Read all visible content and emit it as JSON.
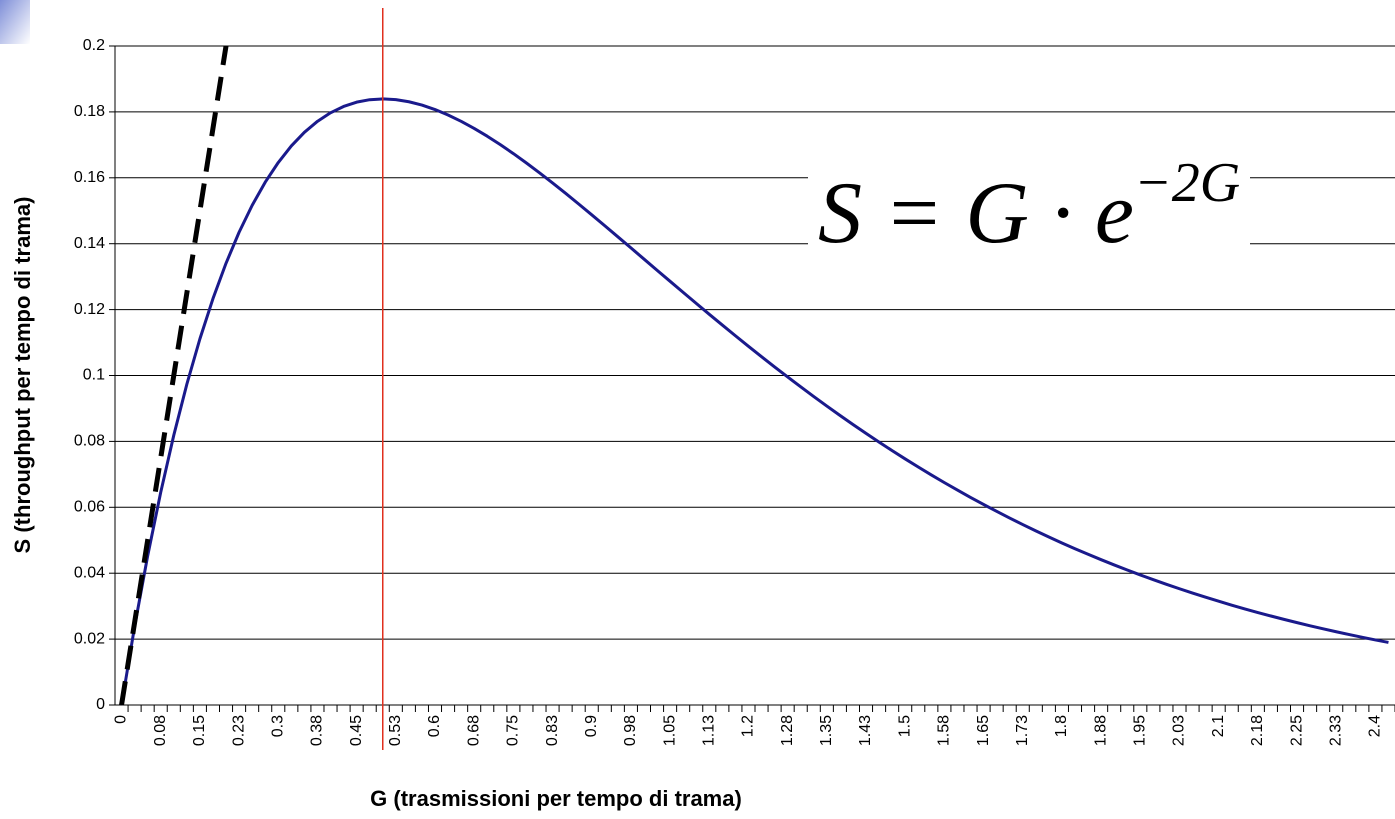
{
  "chart_data": {
    "type": "line",
    "xlabel": "G (trasmissioni per tempo di trama)",
    "ylabel": "S (throughput per tempo di trama)",
    "annotation": {
      "base": "S = G · e",
      "exponent": "−2G"
    },
    "vline": {
      "x": 0.5,
      "color": "#e0301e"
    },
    "x": [
      0,
      0.025,
      0.05,
      0.075,
      0.1,
      0.125,
      0.15,
      0.175,
      0.2,
      0.225,
      0.25,
      0.275,
      0.3,
      0.325,
      0.35,
      0.375,
      0.4,
      0.425,
      0.45,
      0.475,
      0.5,
      0.525,
      0.55,
      0.575,
      0.6,
      0.625,
      0.65,
      0.675,
      0.7,
      0.725,
      0.75,
      0.775,
      0.8,
      0.825,
      0.85,
      0.875,
      0.9,
      0.925,
      0.95,
      0.975,
      1.0,
      1.025,
      1.05,
      1.075,
      1.1,
      1.125,
      1.15,
      1.175,
      1.2,
      1.225,
      1.25,
      1.275,
      1.3,
      1.325,
      1.35,
      1.375,
      1.4,
      1.425,
      1.45,
      1.475,
      1.5,
      1.525,
      1.55,
      1.575,
      1.6,
      1.625,
      1.65,
      1.675,
      1.7,
      1.725,
      1.75,
      1.775,
      1.8,
      1.825,
      1.85,
      1.875,
      1.9,
      1.925,
      1.95,
      1.975,
      2.0,
      2.025,
      2.05,
      2.075,
      2.1,
      2.125,
      2.15,
      2.175,
      2.2,
      2.225,
      2.25,
      2.275,
      2.3,
      2.325,
      2.35,
      2.375,
      2.4,
      2.425
    ],
    "series": [
      {
        "color": "#1a1a8c",
        "style": "solid",
        "values": [
          0,
          0.02378,
          0.04524,
          0.06455,
          0.08187,
          0.09735,
          0.11112,
          0.12332,
          0.13406,
          0.14347,
          0.15163,
          0.15866,
          0.16464,
          0.16967,
          0.1738,
          0.17714,
          0.17973,
          0.18165,
          0.18296,
          0.1837,
          0.18394,
          0.18372,
          0.18308,
          0.18207,
          0.18072,
          0.17907,
          0.17715,
          0.17499,
          0.17262,
          0.17006,
          0.16735,
          0.16449,
          0.16152,
          0.15844,
          0.15528,
          0.15205,
          0.14877,
          0.14544,
          0.14209,
          0.13872,
          0.13534,
          0.13195,
          0.12858,
          0.12522,
          0.12188,
          0.11857,
          0.1153,
          0.11206,
          0.10886,
          0.10571,
          0.10261,
          0.09955,
          0.09656,
          0.09361,
          0.09073,
          0.0879,
          0.08513,
          0.08243,
          0.07978,
          0.0772,
          0.07468,
          0.07222,
          0.06983,
          0.06749,
          0.06522,
          0.06301,
          0.06086,
          0.05877,
          0.05673,
          0.05476,
          0.05284,
          0.05099,
          0.04918,
          0.04743,
          0.04574,
          0.0441,
          0.04251,
          0.04096,
          0.03947,
          0.03803,
          0.03663,
          0.03528,
          0.03397,
          0.03271,
          0.03149,
          0.03031,
          0.02917,
          0.02807,
          0.02701,
          0.02599,
          0.025,
          0.02404,
          0.02312,
          0.02223,
          0.02137,
          0.02055,
          0.01975,
          0.01898
        ]
      },
      {
        "color": "#000000",
        "style": "dashed",
        "values": [
          0,
          0.025,
          0.05,
          0.075,
          0.1,
          0.125,
          0.15,
          0.175,
          0.2,
          null,
          null,
          null,
          null,
          null,
          null,
          null,
          null,
          null,
          null,
          null,
          null,
          null,
          null,
          null,
          null,
          null,
          null,
          null,
          null,
          null,
          null,
          null,
          null,
          null,
          null,
          null,
          null,
          null,
          null,
          null,
          null,
          null,
          null,
          null,
          null,
          null,
          null,
          null,
          null,
          null,
          null,
          null,
          null,
          null,
          null,
          null,
          null,
          null,
          null,
          null,
          null,
          null,
          null,
          null,
          null,
          null,
          null,
          null,
          null,
          null,
          null,
          null,
          null,
          null,
          null,
          null,
          null,
          null,
          null,
          null,
          null,
          null,
          null,
          null,
          null,
          null,
          null,
          null,
          null,
          null,
          null,
          null,
          null,
          null,
          null,
          null,
          null,
          null
        ]
      }
    ],
    "xlim": [
      -0.0125,
      2.4375
    ],
    "xticks": [
      0,
      {
        "value": 0.075,
        "label": "0.08"
      },
      0.15,
      {
        "value": 0.225,
        "label": "0.23"
      },
      0.3,
      {
        "value": 0.375,
        "label": "0.38"
      },
      0.45,
      {
        "value": 0.525,
        "label": "0.53"
      },
      0.6,
      {
        "value": 0.675,
        "label": "0.68"
      },
      0.75,
      {
        "value": 0.825,
        "label": "0.83"
      },
      0.9,
      {
        "value": 0.975,
        "label": "0.98"
      },
      1.05,
      {
        "value": 1.125,
        "label": "1.13"
      },
      1.2,
      {
        "value": 1.275,
        "label": "1.28"
      },
      1.35,
      {
        "value": 1.425,
        "label": "1.43"
      },
      1.5,
      {
        "value": 1.575,
        "label": "1.58"
      },
      1.65,
      {
        "value": 1.725,
        "label": "1.73"
      },
      1.8,
      {
        "value": 1.875,
        "label": "1.88"
      },
      1.95,
      {
        "value": 2.025,
        "label": "2.03"
      },
      2.1,
      {
        "value": 2.175,
        "label": "2.18"
      },
      2.25,
      {
        "value": 2.325,
        "label": "2.33"
      },
      2.4
    ],
    "ylim": [
      0,
      0.2
    ],
    "yticks": [
      0,
      0.02,
      0.04,
      0.06,
      0.08,
      0.1,
      0.12,
      0.14,
      0.16,
      0.18,
      0.2
    ],
    "grid": true
  }
}
